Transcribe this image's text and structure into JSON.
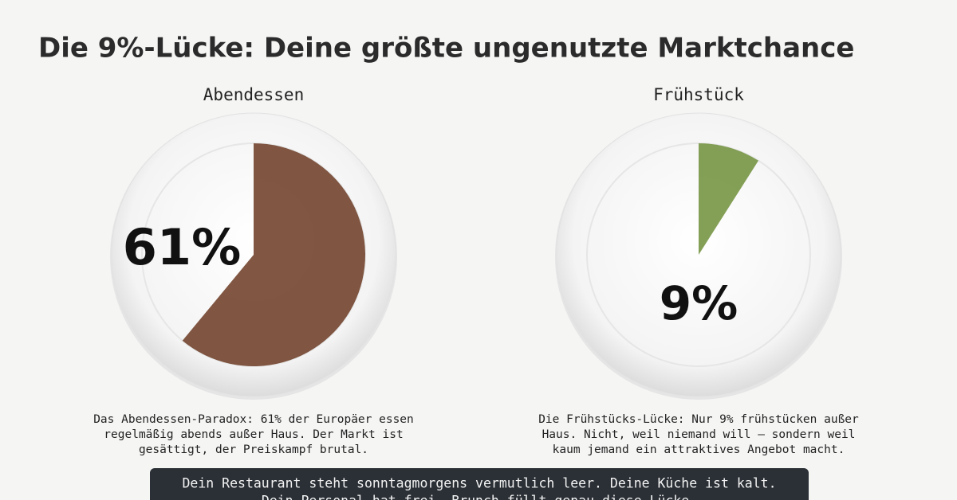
{
  "title": "Die 9%-Lücke: Deine größte ungenutzte Marktchance",
  "panels": [
    {
      "label": "Abendessen",
      "value": 61,
      "value_label": "61%",
      "color": "#6b3a22",
      "text": [
        "Das Abendessen-Paradox: 61% der Europäer essen",
        "regelmäßig abends außer Haus. Der Markt ist",
        "gesättigt, der Preiskampf brutal."
      ]
    },
    {
      "label": "Frühstück",
      "value": 9,
      "value_label": "9%",
      "color": "#6f8f3a",
      "text": [
        "Die Frühstücks-Lücke: Nur 9% frühstücken außer",
        "Haus. Nicht, weil niemand will – sondern weil",
        "kaum jemand ein attraktives Angebot macht."
      ]
    }
  ],
  "banner": [
    "Dein Restaurant steht sonntagmorgens vermutlich leer. Deine Küche ist kalt.",
    "Dein Personal hat frei. Brunch füllt genau diese Lücke."
  ]
}
